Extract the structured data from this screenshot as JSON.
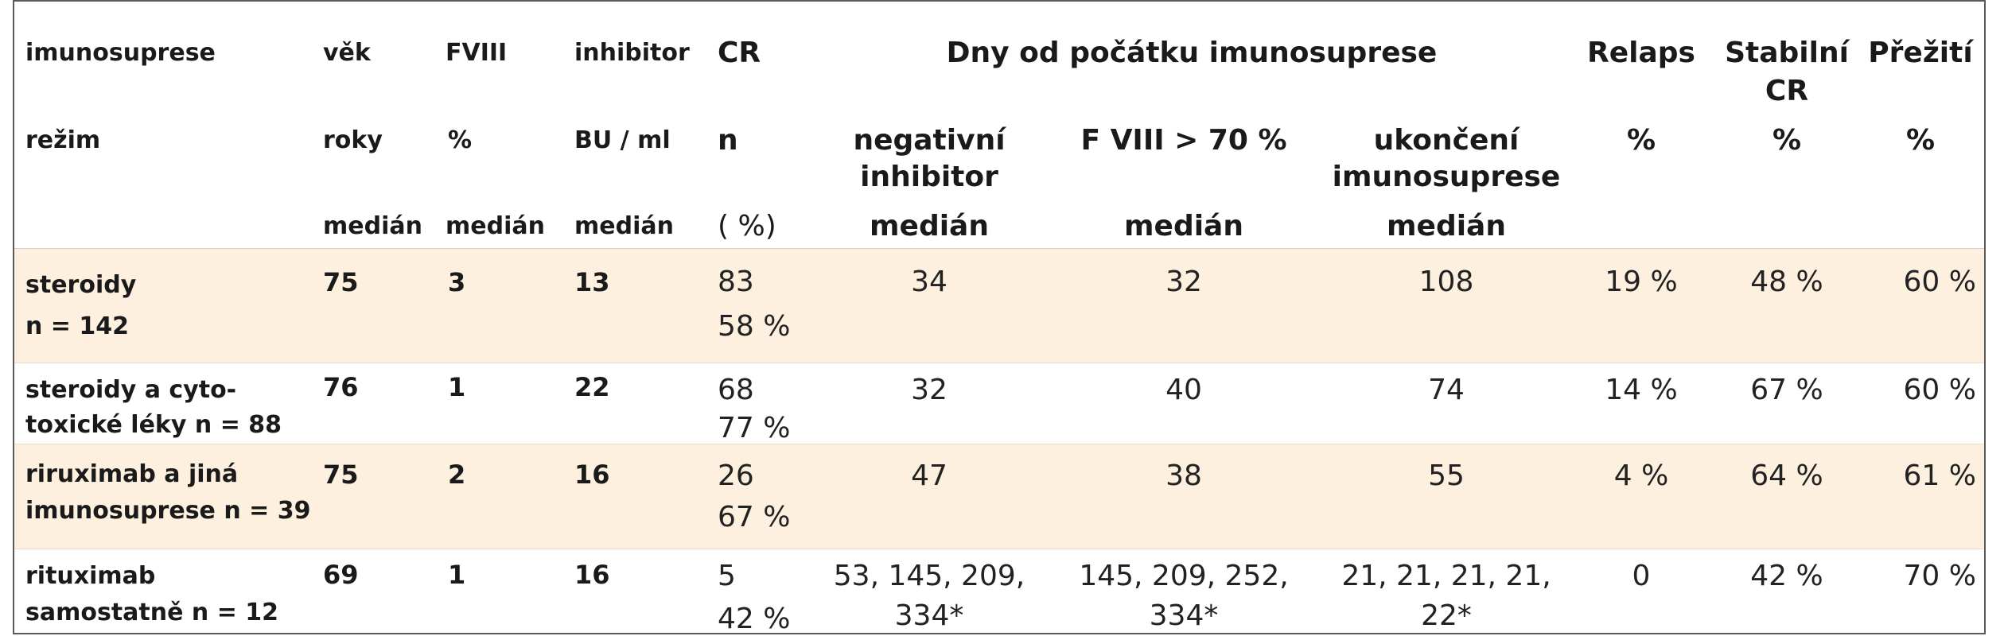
{
  "header": {
    "row1": {
      "imunosuprese": "imunosuprese",
      "vek": "věk",
      "fviii": "FVIII",
      "inhibitor": "inhibitor",
      "cr": "CR",
      "dny": "Dny od počátku imunosuprese",
      "relaps": "Relaps",
      "stabilni1": "Stabilní",
      "stabilni2": "CR",
      "preziti": "Přežití"
    },
    "row2": {
      "rezim": "režim",
      "roky": "roky",
      "pct_fviii": "%",
      "bu": "BU / ml",
      "n": "n",
      "neg1": "negativní",
      "neg2": "inhibitor",
      "fviii70": "F VIII > 70  %",
      "ukon1": "ukončení",
      "ukon2": "imunosuprese",
      "pct_relaps": "%",
      "pct_stab": "%",
      "pct_prez": "%"
    },
    "row3": {
      "median_vek": "medián",
      "median_fviii": "medián",
      "median_inhib": "medián",
      "cr_pct": "( %)",
      "median_neg": "medián",
      "median_f70": "medián",
      "median_ukon": "medián"
    }
  },
  "rows": [
    {
      "label1": "steroidy",
      "label2": "n = 142",
      "vek": "75",
      "fviii": "3",
      "inhibitor": "13",
      "cr_n": "83",
      "cr_pct": "58 %",
      "neg1": "34",
      "neg2": "",
      "f70_1": "32",
      "f70_2": "",
      "ukon1": "108",
      "ukon2": "",
      "relaps": "19 %",
      "stabilni": "48 %",
      "preziti": "60 %"
    },
    {
      "label1": "steroidy a cyto-",
      "label2": "toxické léky n = 88",
      "vek": "76",
      "fviii": "1",
      "inhibitor": "22",
      "cr_n": "68",
      "cr_pct": "77 %",
      "neg1": "32",
      "neg2": "",
      "f70_1": "40",
      "f70_2": "",
      "ukon1": "74",
      "ukon2": "",
      "relaps": "14 %",
      "stabilni": "67 %",
      "preziti": "60 %"
    },
    {
      "label1": "riruximab a jiná",
      "label2": "imunosuprese n = 39",
      "vek": "75",
      "fviii": "2",
      "inhibitor": "16",
      "cr_n": "26",
      "cr_pct": "67 %",
      "neg1": "47",
      "neg2": "",
      "f70_1": "38",
      "f70_2": "",
      "ukon1": "55",
      "ukon2": "",
      "relaps": "4 %",
      "stabilni": "64 %",
      "preziti": "61 %"
    },
    {
      "label1": "rituximab",
      "label2": "samostatně n = 12",
      "vek": "69",
      "fviii": "1",
      "inhibitor": "16",
      "cr_n": "5",
      "cr_pct": "42 %",
      "neg1": "53, 145, 209,",
      "neg2": "334*",
      "f70_1": "145, 209, 252,",
      "f70_2": "334*",
      "ukon1": "21, 21, 21, 21,",
      "ukon2": "22*",
      "relaps": "0",
      "stabilni": "42 %",
      "preziti": "70 %"
    }
  ]
}
